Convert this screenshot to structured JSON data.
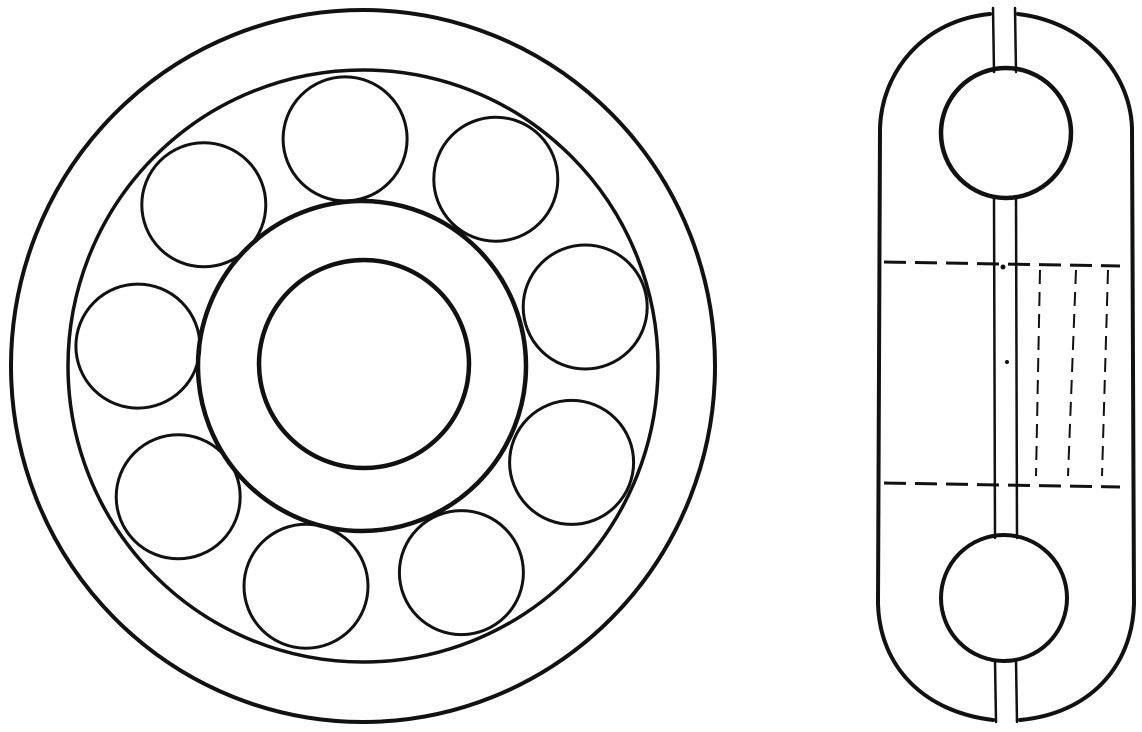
{
  "figure": {
    "views": [
      {
        "id": "front-view",
        "description_text": ""
      },
      {
        "id": "side-view",
        "description_text": ""
      }
    ],
    "front_view": {
      "ball_count": 9
    },
    "colors": {
      "ink": "#111111",
      "paper": "#ffffff"
    }
  }
}
